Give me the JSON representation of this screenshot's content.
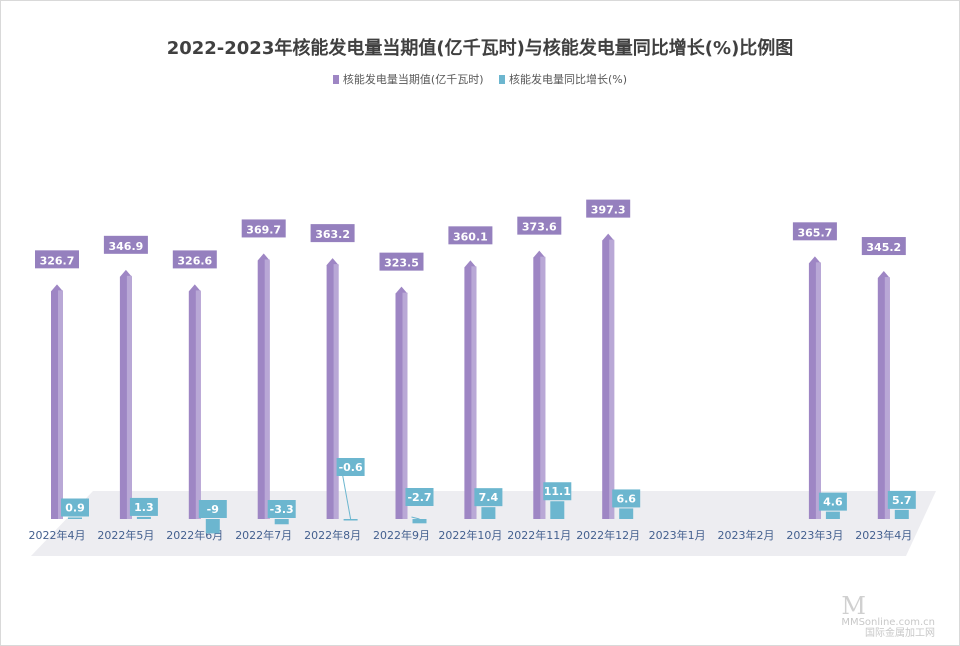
{
  "watermark": {
    "logo": "M",
    "line1": "MMSonline.com.cn",
    "line2": "国际金属加工网"
  },
  "chart_data": {
    "type": "bar",
    "title": "2022-2023年核能发电量当期值(亿千瓦时)与核能发电量同比增长(%)比例图",
    "legend_position": "top",
    "categories": [
      "2022年4月",
      "2022年5月",
      "2022年6月",
      "2022年7月",
      "2022年8月",
      "2022年9月",
      "2022年10月",
      "2022年11月",
      "2022年12月",
      "2023年1月",
      "2023年2月",
      "2023年3月",
      "2023年4月"
    ],
    "series": [
      {
        "name": "核能发电量当期值(亿千瓦时)",
        "color": "#9e86c4",
        "values": [
          326.7,
          346.9,
          326.6,
          369.7,
          363.2,
          323.5,
          360.1,
          373.6,
          397.3,
          null,
          null,
          365.7,
          345.2
        ]
      },
      {
        "name": "核能发电量同比增长(%)",
        "color": "#6cb6cf",
        "values": [
          0.9,
          1.3,
          -9,
          -3.3,
          -0.6,
          -2.7,
          7.4,
          11.1,
          6.6,
          null,
          null,
          4.6,
          5.7
        ]
      }
    ],
    "grid": false
  }
}
